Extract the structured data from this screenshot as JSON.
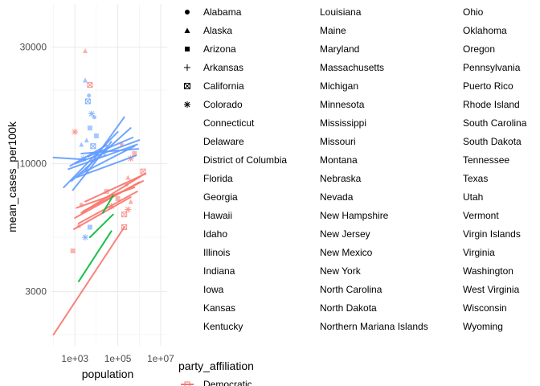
{
  "chart_data": {
    "type": "scatter",
    "xlabel": "population",
    "ylabel": "mean_cases_per100k",
    "x_scale": "log10",
    "y_scale": "log10",
    "x_ticks": [
      "1e+03",
      "1e+05",
      "1e+07"
    ],
    "x_tick_values": [
      1000,
      100000,
      10000000
    ],
    "y_ticks": [
      "3000",
      "10000",
      "30000"
    ],
    "y_tick_values": [
      3000,
      10000,
      30000
    ],
    "xlim": [
      80,
      20000000
    ],
    "ylim": [
      1800,
      45000
    ],
    "grid": true,
    "legend_shape": {
      "title": "",
      "entries": [
        {
          "label": "Alabama",
          "shape": "circle"
        },
        {
          "label": "Alaska",
          "shape": "triangle"
        },
        {
          "label": "Arizona",
          "shape": "square"
        },
        {
          "label": "Arkansas",
          "shape": "plus"
        },
        {
          "label": "California",
          "shape": "boxed-x"
        },
        {
          "label": "Colorado",
          "shape": "asterisk"
        },
        {
          "label": "Connecticut",
          "shape": "none"
        },
        {
          "label": "Delaware",
          "shape": "none"
        },
        {
          "label": "District of Columbia",
          "shape": "none"
        },
        {
          "label": "Florida",
          "shape": "none"
        },
        {
          "label": "Georgia",
          "shape": "none"
        },
        {
          "label": "Hawaii",
          "shape": "none"
        },
        {
          "label": "Idaho",
          "shape": "none"
        },
        {
          "label": "Illinois",
          "shape": "none"
        },
        {
          "label": "Indiana",
          "shape": "none"
        },
        {
          "label": "Iowa",
          "shape": "none"
        },
        {
          "label": "Kansas",
          "shape": "none"
        },
        {
          "label": "Kentucky",
          "shape": "none"
        },
        {
          "label": "Louisiana",
          "shape": "none"
        },
        {
          "label": "Maine",
          "shape": "none"
        },
        {
          "label": "Maryland",
          "shape": "none"
        },
        {
          "label": "Massachusetts",
          "shape": "none"
        },
        {
          "label": "Michigan",
          "shape": "none"
        },
        {
          "label": "Minnesota",
          "shape": "none"
        },
        {
          "label": "Mississippi",
          "shape": "none"
        },
        {
          "label": "Missouri",
          "shape": "none"
        },
        {
          "label": "Montana",
          "shape": "none"
        },
        {
          "label": "Nebraska",
          "shape": "none"
        },
        {
          "label": "Nevada",
          "shape": "none"
        },
        {
          "label": "New Hampshire",
          "shape": "none"
        },
        {
          "label": "New Jersey",
          "shape": "none"
        },
        {
          "label": "New Mexico",
          "shape": "none"
        },
        {
          "label": "New York",
          "shape": "none"
        },
        {
          "label": "North Carolina",
          "shape": "none"
        },
        {
          "label": "North Dakota",
          "shape": "none"
        },
        {
          "label": "Northern Mariana Islands",
          "shape": "none"
        },
        {
          "label": "Ohio",
          "shape": "none"
        },
        {
          "label": "Oklahoma",
          "shape": "none"
        },
        {
          "label": "Oregon",
          "shape": "none"
        },
        {
          "label": "Pennsylvania",
          "shape": "none"
        },
        {
          "label": "Puerto Rico",
          "shape": "none"
        },
        {
          "label": "Rhode Island",
          "shape": "none"
        },
        {
          "label": "South Carolina",
          "shape": "none"
        },
        {
          "label": "South Dakota",
          "shape": "none"
        },
        {
          "label": "Tennessee",
          "shape": "none"
        },
        {
          "label": "Texas",
          "shape": "none"
        },
        {
          "label": "Utah",
          "shape": "none"
        },
        {
          "label": "Vermont",
          "shape": "none"
        },
        {
          "label": "Virgin Islands",
          "shape": "none"
        },
        {
          "label": "Virginia",
          "shape": "none"
        },
        {
          "label": "Washington",
          "shape": "none"
        },
        {
          "label": "West Virginia",
          "shape": "none"
        },
        {
          "label": "Wisconsin",
          "shape": "none"
        },
        {
          "label": "Wyoming",
          "shape": "none"
        }
      ]
    },
    "legend_color": {
      "title": "party_affiliation",
      "entries": [
        {
          "label": "Democratic",
          "color": "#F8766D"
        }
      ]
    },
    "colors": {
      "Democratic": "#F8766D",
      "green": "#00BA38",
      "blue": "#619CFF"
    },
    "series": [
      {
        "color": "#F8766D",
        "lines": [
          [
            [
              100,
              2000
            ],
            [
              200000,
              5500
            ]
          ],
          [
            [
              1000,
              6000
            ],
            [
              1000000,
              8400
            ]
          ],
          [
            [
              1500,
              5700
            ],
            [
              800000,
              7700
            ]
          ],
          [
            [
              2000,
              6300
            ],
            [
              1200000,
              8900
            ]
          ],
          [
            [
              1200,
              6600
            ],
            [
              600000,
              8000
            ]
          ],
          [
            [
              3000,
              7000
            ],
            [
              2000000,
              9100
            ]
          ],
          [
            [
              900,
              5400
            ],
            [
              400000,
              7300
            ]
          ],
          [
            [
              2500,
              6400
            ],
            [
              1500000,
              8500
            ]
          ]
        ],
        "points": [
          [
            3000,
            29000
          ],
          [
            5000,
            21000
          ],
          [
            1000,
            13500
          ],
          [
            800,
            4400
          ],
          [
            2000,
            6800
          ],
          [
            1500,
            5600
          ],
          [
            200000,
            6200
          ],
          [
            300000,
            6500
          ],
          [
            100000,
            7200
          ],
          [
            250000,
            8200
          ],
          [
            300000,
            8800
          ],
          [
            1500000,
            9300
          ],
          [
            400000,
            10500
          ],
          [
            600000,
            11000
          ],
          [
            150000,
            12000
          ],
          [
            400000,
            7000
          ],
          [
            200000,
            5500
          ],
          [
            50000,
            6700
          ],
          [
            30000,
            7700
          ]
        ]
      },
      {
        "color": "#00BA38",
        "lines": [
          [
            [
              1500,
              3300
            ],
            [
              50000,
              5300
            ]
          ],
          [
            [
              5000,
              5000
            ],
            [
              60000,
              6200
            ]
          ],
          [
            [
              20000,
              6300
            ],
            [
              60000,
              7400
            ]
          ]
        ],
        "points": []
      },
      {
        "color": "#619CFF",
        "lines": [
          [
            [
              100,
              10600
            ],
            [
              3000,
              10400
            ]
          ],
          [
            [
              500,
              9500
            ],
            [
              800000,
              12000
            ]
          ],
          [
            [
              700,
              8500
            ],
            [
              400000,
              14000
            ]
          ],
          [
            [
              1000,
              10000
            ],
            [
              1000000,
              12500
            ]
          ],
          [
            [
              1500,
              9000
            ],
            [
              600000,
              11800
            ]
          ],
          [
            [
              300,
              8000
            ],
            [
              100000,
              13500
            ]
          ],
          [
            [
              2000,
              11000
            ],
            [
              900000,
              11500
            ]
          ],
          [
            [
              800,
              7800
            ],
            [
              50000,
              12300
            ]
          ],
          [
            [
              3000,
              9300
            ],
            [
              200000,
              15500
            ]
          ],
          [
            [
              1200,
              8800
            ],
            [
              700000,
              10800
            ]
          ],
          [
            [
              4000,
              10700
            ],
            [
              500000,
              12800
            ]
          ],
          [
            [
              600,
              9800
            ],
            [
              30000,
              11900
            ]
          ]
        ],
        "points": [
          [
            3000,
            22000
          ],
          [
            4000,
            18000
          ],
          [
            6000,
            16000
          ],
          [
            5000,
            14000
          ],
          [
            8000,
            15500
          ],
          [
            3500,
            12500
          ],
          [
            7000,
            11800
          ],
          [
            2500,
            10500
          ],
          [
            10000,
            13000
          ],
          [
            4500,
            19000
          ],
          [
            2000,
            12000
          ],
          [
            20000,
            11000
          ],
          [
            3000,
            5000
          ],
          [
            5000,
            5500
          ]
        ]
      }
    ]
  }
}
